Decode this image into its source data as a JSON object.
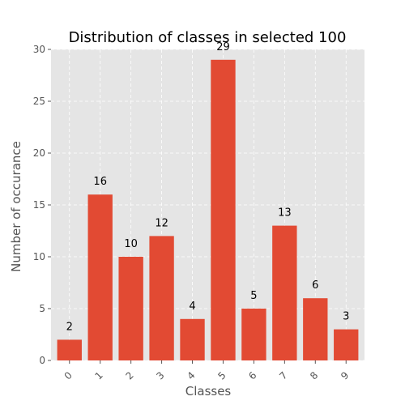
{
  "chart_data": {
    "type": "bar",
    "title": "Distribution of classes in selected 100",
    "xlabel": "Classes",
    "ylabel": "Number of occurance",
    "categories": [
      "0",
      "1",
      "2",
      "3",
      "4",
      "5",
      "6",
      "7",
      "8",
      "9"
    ],
    "values": [
      2,
      16,
      10,
      12,
      4,
      29,
      5,
      13,
      6,
      3
    ],
    "ylim": [
      0,
      30
    ],
    "yticks": [
      "0",
      "5",
      "10",
      "15",
      "20",
      "25",
      "30"
    ],
    "grid": true,
    "xtick_rotation": 45,
    "colors": {
      "bar": "#E24A33",
      "plot_background": "#E5E5E5",
      "grid": "#FFFFFF",
      "tick": "#555555"
    }
  }
}
